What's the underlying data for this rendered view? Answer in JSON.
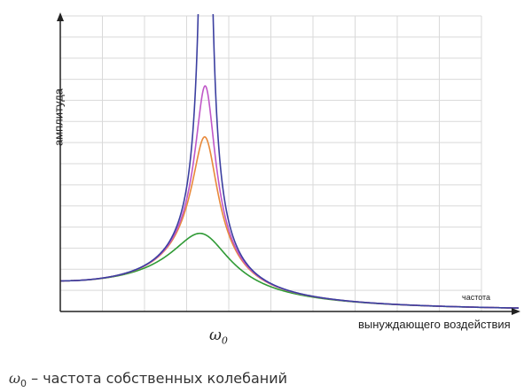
{
  "chart_data": {
    "type": "line",
    "title": "",
    "ylabel": "амплитуда",
    "xlabel_top": "частота",
    "xlabel_bottom": "вынуждающего воздействия",
    "x_tick_labels": [
      {
        "label": "ω",
        "subscript": "0",
        "x": 1.0
      }
    ],
    "xlim": [
      0,
      3.15
    ],
    "ylim": [
      0,
      14
    ],
    "grid": true,
    "resonance_x": 1.0,
    "series": [
      {
        "values_note": "",
        "zeta": 0.005,
        "color": "#3b3fa0",
        "peak_y": 100
      },
      {
        "values_note": "",
        "zeta": 0.068,
        "color": "#c058c8",
        "peak_y": 8.6
      },
      {
        "values_note": "",
        "zeta": 0.088,
        "color": "#e8893a",
        "peak_y": 6.8
      },
      {
        "values_note": "",
        "zeta": 0.2,
        "color": "#2f9a35",
        "peak_y": 3.3
      }
    ]
  },
  "caption": {
    "symbol": "ω",
    "subscript": "0",
    "text": " – частота собственных колебаний"
  }
}
